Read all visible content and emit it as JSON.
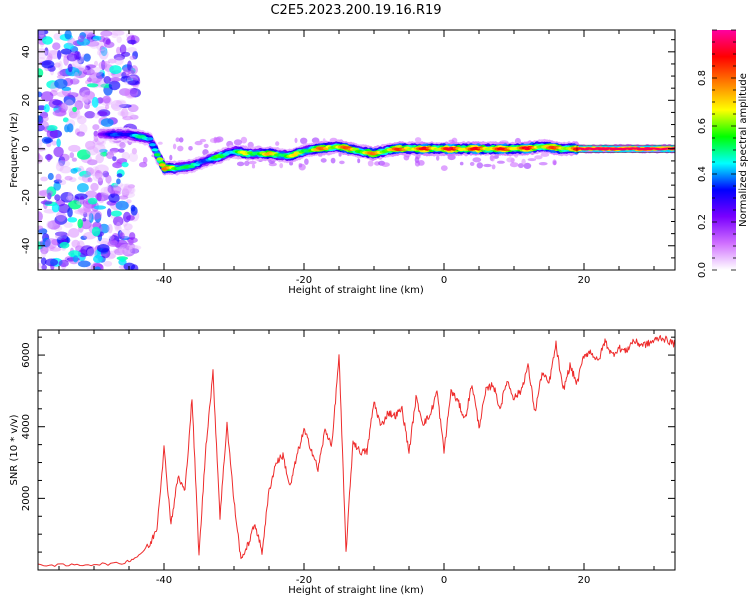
{
  "title": "C2E5.2023.200.19.16.R19",
  "chart_data": [
    {
      "type": "heatmap",
      "xlabel": "Height of straight line (km)",
      "ylabel": "Frequency (Hz)",
      "xlim": [
        -58,
        33
      ],
      "ylim": [
        -50,
        49
      ],
      "xticks": [
        "-40",
        "-20",
        "0",
        "20"
      ],
      "yticks": [
        "-40",
        "-20",
        "0",
        "20",
        "40"
      ],
      "noise_region": {
        "x_range": [
          -58,
          -44
        ],
        "y_range": [
          -50,
          49
        ],
        "typical_amplitude": 0.2
      },
      "ridge": {
        "x": [
          -49,
          -45,
          -42,
          -40,
          -38,
          -36,
          -34,
          -32,
          -30,
          -28,
          -25,
          -22,
          -20,
          -18,
          -15,
          -12,
          -10,
          -7,
          -4,
          -1,
          2,
          5,
          8,
          11,
          14,
          17,
          20,
          25,
          33
        ],
        "frequency": [
          6,
          6,
          4,
          -8,
          -8,
          -7,
          -5,
          -3,
          -1,
          -2,
          -2,
          -3,
          -1,
          0,
          1,
          -1,
          -2,
          0,
          0,
          0,
          0,
          0,
          0,
          0,
          1,
          0,
          0,
          0,
          0
        ],
        "amplitude": [
          0.3,
          0.45,
          0.55,
          0.8,
          0.75,
          0.5,
          0.5,
          0.6,
          0.6,
          0.7,
          0.75,
          0.7,
          0.7,
          0.8,
          0.85,
          0.8,
          0.8,
          0.85,
          0.9,
          0.9,
          0.95,
          0.9,
          0.9,
          0.95,
          0.85,
          0.85,
          0.95,
          0.95,
          0.95
        ]
      },
      "colorbar": {
        "label": "Normalized spectral amplitude",
        "range": [
          0.0,
          1.0
        ],
        "ticks": [
          "0.0",
          "0.2",
          "0.4",
          "0.6",
          "0.8"
        ],
        "colors": [
          "#ffffff",
          "#d070ff",
          "#7a00ff",
          "#0000ff",
          "#00ffff",
          "#00ff00",
          "#ffff00",
          "#ff8000",
          "#ff0000",
          "#ff00a0"
        ]
      }
    },
    {
      "type": "line",
      "xlabel": "Height of straight line (km)",
      "ylabel": "SNR (10 * v/v)",
      "xlim": [
        -58,
        33
      ],
      "ylim": [
        0,
        6700
      ],
      "xticks": [
        "-40",
        "-20",
        "0",
        "20"
      ],
      "yticks": [
        "2000",
        "4000",
        "6000"
      ],
      "color": "#ee2c2c",
      "x": [
        -58,
        -54,
        -50,
        -46,
        -44,
        -42,
        -41,
        -40,
        -39,
        -38,
        -37,
        -36,
        -35,
        -34,
        -33,
        -32,
        -31,
        -30,
        -29,
        -28,
        -27,
        -26,
        -25,
        -24,
        -23,
        -22,
        -21,
        -20,
        -19,
        -18,
        -17,
        -16,
        -15,
        -14,
        -13,
        -12,
        -11,
        -10,
        -9,
        -8,
        -7,
        -6,
        -5,
        -4,
        -3,
        -2,
        -1,
        0,
        1,
        2,
        3,
        4,
        5,
        6,
        7,
        8,
        9,
        10,
        11,
        12,
        13,
        14,
        15,
        16,
        17,
        18,
        19,
        20,
        21,
        22,
        23,
        24,
        25,
        26,
        27,
        28,
        29,
        30,
        31,
        32,
        33
      ],
      "snr": [
        150,
        130,
        160,
        180,
        350,
        700,
        1200,
        3400,
        1300,
        2600,
        2200,
        4800,
        400,
        3500,
        5500,
        1500,
        4100,
        1900,
        300,
        700,
        1300,
        500,
        2200,
        3000,
        3200,
        2300,
        3200,
        3900,
        3400,
        2800,
        3900,
        3500,
        6000,
        500,
        3600,
        3300,
        3300,
        4700,
        4000,
        4400,
        4300,
        4500,
        3300,
        4800,
        4100,
        4300,
        5000,
        3300,
        5000,
        4700,
        4200,
        5200,
        4000,
        5000,
        5200,
        4500,
        5300,
        4800,
        5000,
        5700,
        4400,
        5500,
        5200,
        6300,
        5000,
        5700,
        5200,
        6000,
        6100,
        5800,
        6400,
        6000,
        6200,
        6100,
        6400,
        6300,
        6300,
        6400,
        6500,
        6400,
        6300
      ]
    }
  ]
}
